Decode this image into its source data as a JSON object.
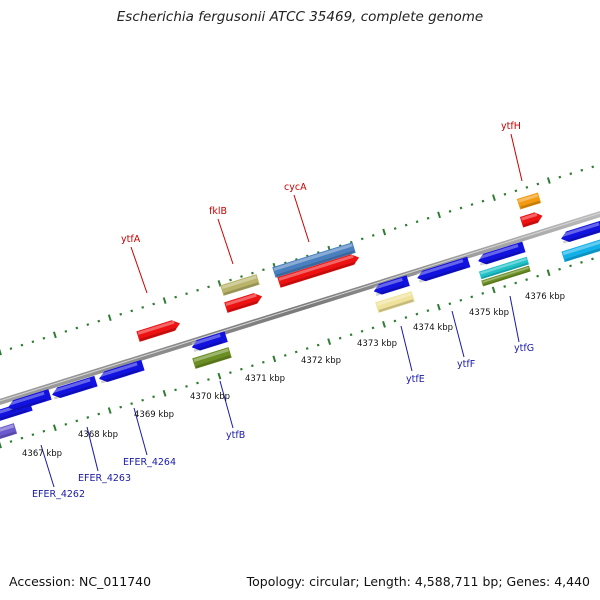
{
  "title": "Escherichia fergusonii ATCC 35469, complete genome",
  "footer": {
    "accession": "Accession: NC_011740",
    "summary": "Topology: circular; Length: 4,588,711 bp; Genes: 4,440"
  },
  "colors": {
    "backbone": "#8a8a8a",
    "tick": "#2e7d32",
    "gene_label_red": "#cc0000",
    "gene_label_blue": "#1a1aaa",
    "pos_label": "#111111"
  },
  "positions": [
    {
      "label": "4367 kbp",
      "kbp": 4367
    },
    {
      "label": "4368 kbp",
      "kbp": 4368
    },
    {
      "label": "4369 kbp",
      "kbp": 4369
    },
    {
      "label": "4370 kbp",
      "kbp": 4370
    },
    {
      "label": "4371 kbp",
      "kbp": 4371
    },
    {
      "label": "4372 kbp",
      "kbp": 4372
    },
    {
      "label": "4373 kbp",
      "kbp": 4373
    },
    {
      "label": "4374 kbp",
      "kbp": 4374
    },
    {
      "label": "4375 kbp",
      "kbp": 4375
    },
    {
      "label": "4376 kbp",
      "kbp": 4376
    }
  ],
  "gene_labels": [
    {
      "text": "ytfH",
      "color": "red"
    },
    {
      "text": "cycA",
      "color": "red"
    },
    {
      "text": "fklB",
      "color": "red"
    },
    {
      "text": "ytfA",
      "color": "red"
    },
    {
      "text": "ytfE",
      "color": "blue"
    },
    {
      "text": "ytfF",
      "color": "blue"
    },
    {
      "text": "ytfG",
      "color": "blue"
    },
    {
      "text": "ytfB",
      "color": "blue"
    },
    {
      "text": "EFER_4264",
      "color": "blue"
    },
    {
      "text": "EFER_4263",
      "color": "blue"
    },
    {
      "text": "EFER_4262",
      "color": "blue"
    }
  ]
}
